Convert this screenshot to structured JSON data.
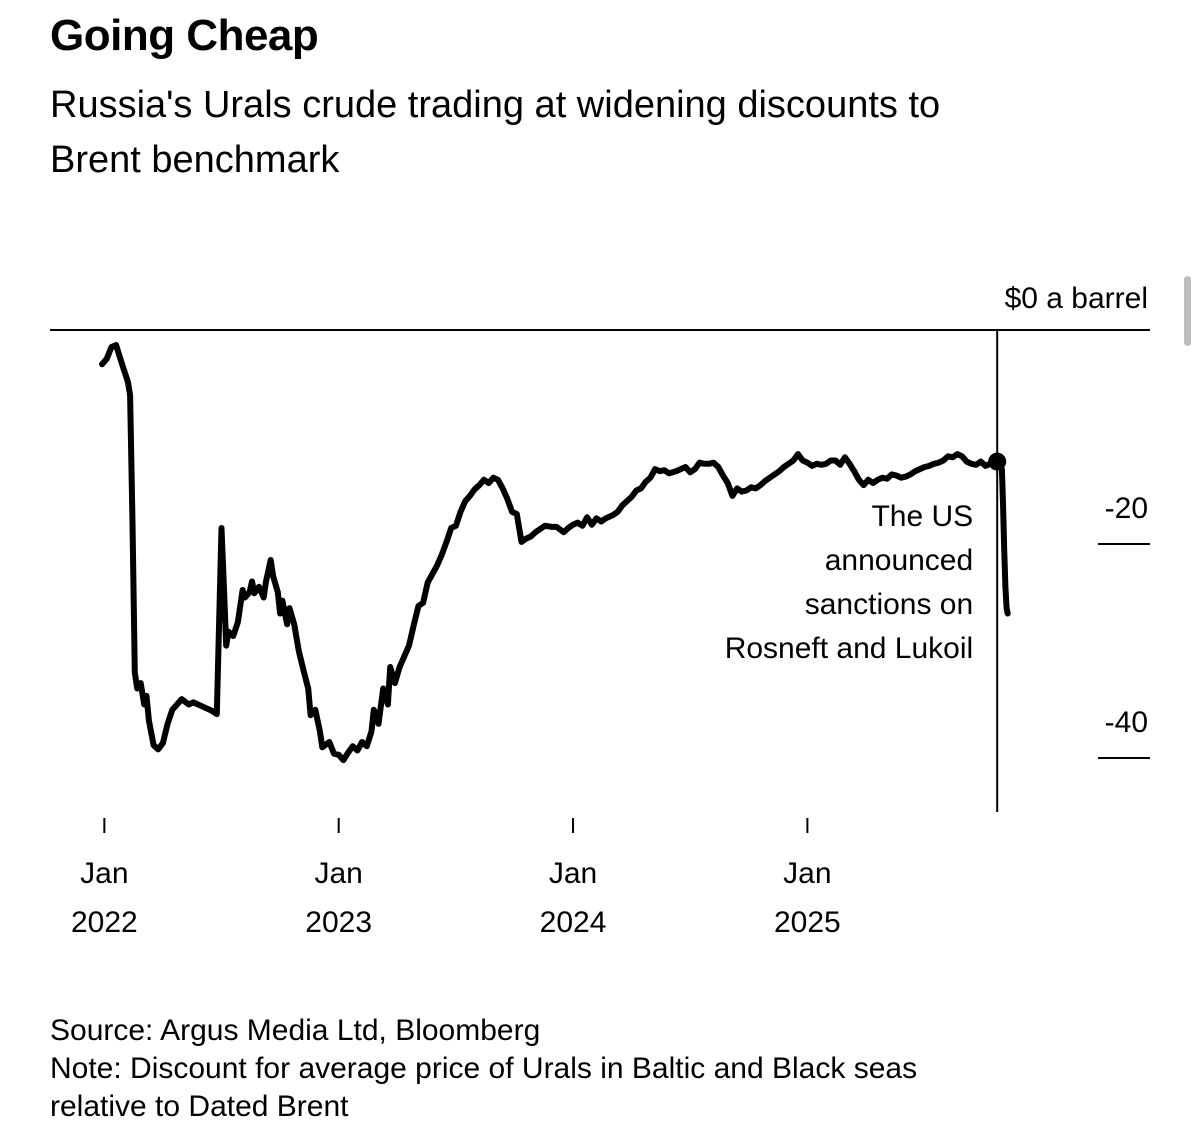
{
  "header": {
    "title": "Going Cheap",
    "subtitle_line1": "Russia's Urals crude trading at widening discounts to",
    "subtitle_line2": "Brent benchmark"
  },
  "footer": {
    "source": "Source: Argus Media Ltd, Bloomberg",
    "note_line1": "Note: Discount for average price of Urals in Baltic and Black seas",
    "note_line2": "relative to Dated Brent"
  },
  "chart_data": {
    "type": "line",
    "title": "Going Cheap",
    "subtitle": "Russia's Urals crude trading at widening discounts to Brent benchmark",
    "ylabel": "$ a barrel",
    "ylim": [
      -43.5,
      0
    ],
    "xlim": [
      2021.99,
      2025.95
    ],
    "y_ticks": [
      {
        "value": 0,
        "label": "$0 a barrel"
      },
      {
        "value": -20,
        "label": "-20"
      },
      {
        "value": -40,
        "label": "-40"
      }
    ],
    "x_ticks": [
      {
        "value": 2022.0,
        "month": "Jan",
        "year": "2022"
      },
      {
        "value": 2023.0,
        "month": "Jan",
        "year": "2023"
      },
      {
        "value": 2024.0,
        "month": "Jan",
        "year": "2024"
      },
      {
        "value": 2025.0,
        "month": "Jan",
        "year": "2025"
      }
    ],
    "annotation": {
      "x": 2025.81,
      "y": -12.3,
      "lines": [
        "The US",
        "announced",
        "sanctions on",
        "Rosneft and Lukoil"
      ]
    },
    "series": [
      {
        "name": "Urals discount to Dated Brent",
        "points": [
          [
            2021.99,
            -3.2
          ],
          [
            2022.01,
            -2.7
          ],
          [
            2022.03,
            -1.6
          ],
          [
            2022.05,
            -1.4
          ],
          [
            2022.06,
            -2.1
          ],
          [
            2022.08,
            -3.5
          ],
          [
            2022.1,
            -4.8
          ],
          [
            2022.11,
            -6.1
          ],
          [
            2022.12,
            -18.0
          ],
          [
            2022.13,
            -32.0
          ],
          [
            2022.14,
            -33.5
          ],
          [
            2022.155,
            -33.0
          ],
          [
            2022.17,
            -35.0
          ],
          [
            2022.18,
            -34.2
          ],
          [
            2022.19,
            -36.5
          ],
          [
            2022.21,
            -38.8
          ],
          [
            2022.23,
            -39.2
          ],
          [
            2022.25,
            -38.6
          ],
          [
            2022.27,
            -36.8
          ],
          [
            2022.29,
            -35.5
          ],
          [
            2022.31,
            -35.0
          ],
          [
            2022.33,
            -34.5
          ],
          [
            2022.36,
            -35.0
          ],
          [
            2022.38,
            -34.8
          ],
          [
            2022.4,
            -35.0
          ],
          [
            2022.43,
            -35.3
          ],
          [
            2022.46,
            -35.6
          ],
          [
            2022.48,
            -35.9
          ],
          [
            2022.5,
            -18.5
          ],
          [
            2022.51,
            -24.0
          ],
          [
            2022.52,
            -29.5
          ],
          [
            2022.53,
            -28.2
          ],
          [
            2022.55,
            -28.6
          ],
          [
            2022.57,
            -27.3
          ],
          [
            2022.59,
            -24.3
          ],
          [
            2022.6,
            -25.0
          ],
          [
            2022.62,
            -24.5
          ],
          [
            2022.63,
            -23.5
          ],
          [
            2022.64,
            -24.6
          ],
          [
            2022.66,
            -24.0
          ],
          [
            2022.68,
            -25.0
          ],
          [
            2022.69,
            -23.5
          ],
          [
            2022.71,
            -21.5
          ],
          [
            2022.72,
            -23.0
          ],
          [
            2022.74,
            -24.5
          ],
          [
            2022.75,
            -26.5
          ],
          [
            2022.76,
            -25.3
          ],
          [
            2022.78,
            -27.5
          ],
          [
            2022.79,
            -26.0
          ],
          [
            2022.81,
            -27.5
          ],
          [
            2022.83,
            -30.0
          ],
          [
            2022.85,
            -31.8
          ],
          [
            2022.87,
            -33.5
          ],
          [
            2022.88,
            -36.0
          ],
          [
            2022.9,
            -35.5
          ],
          [
            2022.92,
            -37.5
          ],
          [
            2022.93,
            -39.0
          ],
          [
            2022.96,
            -38.5
          ],
          [
            2022.98,
            -39.6
          ],
          [
            2023.0,
            -39.7
          ],
          [
            2023.02,
            -40.2
          ],
          [
            2023.04,
            -39.5
          ],
          [
            2023.06,
            -38.9
          ],
          [
            2023.08,
            -39.3
          ],
          [
            2023.1,
            -38.5
          ],
          [
            2023.12,
            -38.9
          ],
          [
            2023.14,
            -37.5
          ],
          [
            2023.15,
            -35.5
          ],
          [
            2023.17,
            -36.8
          ],
          [
            2023.19,
            -33.5
          ],
          [
            2023.21,
            -35.0
          ],
          [
            2023.22,
            -31.5
          ],
          [
            2023.24,
            -33.0
          ],
          [
            2023.26,
            -31.5
          ],
          [
            2023.28,
            -30.5
          ],
          [
            2023.3,
            -29.5
          ],
          [
            2023.32,
            -27.6
          ],
          [
            2023.34,
            -25.8
          ],
          [
            2023.36,
            -25.5
          ],
          [
            2023.38,
            -23.6
          ],
          [
            2023.4,
            -22.8
          ],
          [
            2023.42,
            -22.0
          ],
          [
            2023.44,
            -21.0
          ],
          [
            2023.46,
            -19.8
          ],
          [
            2023.48,
            -18.5
          ],
          [
            2023.5,
            -18.3
          ],
          [
            2023.52,
            -17.0
          ],
          [
            2023.54,
            -16.0
          ],
          [
            2023.56,
            -15.5
          ],
          [
            2023.58,
            -14.9
          ],
          [
            2023.6,
            -14.5
          ],
          [
            2023.62,
            -14.0
          ],
          [
            2023.64,
            -14.3
          ],
          [
            2023.66,
            -13.8
          ],
          [
            2023.68,
            -14.0
          ],
          [
            2023.7,
            -14.8
          ],
          [
            2023.72,
            -15.8
          ],
          [
            2023.74,
            -17.0
          ],
          [
            2023.76,
            -17.2
          ],
          [
            2023.78,
            -19.8
          ],
          [
            2023.8,
            -19.5
          ],
          [
            2023.82,
            -19.3
          ],
          [
            2023.84,
            -18.9
          ],
          [
            2023.86,
            -18.6
          ],
          [
            2023.88,
            -18.3
          ],
          [
            2023.91,
            -18.4
          ],
          [
            2023.93,
            -18.4
          ],
          [
            2023.96,
            -18.9
          ],
          [
            2023.98,
            -18.5
          ],
          [
            2024.0,
            -18.2
          ],
          [
            2024.02,
            -18.0
          ],
          [
            2024.04,
            -18.3
          ],
          [
            2024.06,
            -17.5
          ],
          [
            2024.08,
            -18.2
          ],
          [
            2024.1,
            -17.6
          ],
          [
            2024.12,
            -17.9
          ],
          [
            2024.14,
            -17.6
          ],
          [
            2024.17,
            -17.3
          ],
          [
            2024.19,
            -17.0
          ],
          [
            2024.21,
            -16.4
          ],
          [
            2024.23,
            -16.0
          ],
          [
            2024.25,
            -15.6
          ],
          [
            2024.27,
            -15.0
          ],
          [
            2024.29,
            -14.8
          ],
          [
            2024.31,
            -14.2
          ],
          [
            2024.33,
            -13.8
          ],
          [
            2024.35,
            -13.0
          ],
          [
            2024.37,
            -13.2
          ],
          [
            2024.39,
            -13.1
          ],
          [
            2024.41,
            -13.4
          ],
          [
            2024.44,
            -13.2
          ],
          [
            2024.46,
            -13.0
          ],
          [
            2024.48,
            -12.8
          ],
          [
            2024.5,
            -13.3
          ],
          [
            2024.52,
            -13.0
          ],
          [
            2024.54,
            -12.4
          ],
          [
            2024.56,
            -12.5
          ],
          [
            2024.58,
            -12.5
          ],
          [
            2024.6,
            -12.4
          ],
          [
            2024.62,
            -12.8
          ],
          [
            2024.64,
            -13.6
          ],
          [
            2024.66,
            -14.3
          ],
          [
            2024.68,
            -15.5
          ],
          [
            2024.7,
            -14.8
          ],
          [
            2024.72,
            -15.1
          ],
          [
            2024.74,
            -15.0
          ],
          [
            2024.76,
            -14.7
          ],
          [
            2024.78,
            -14.8
          ],
          [
            2024.8,
            -14.5
          ],
          [
            2024.82,
            -14.1
          ],
          [
            2024.84,
            -13.8
          ],
          [
            2024.86,
            -13.5
          ],
          [
            2024.88,
            -13.2
          ],
          [
            2024.9,
            -12.8
          ],
          [
            2024.92,
            -12.5
          ],
          [
            2024.94,
            -12.2
          ],
          [
            2024.96,
            -11.6
          ],
          [
            2024.98,
            -12.2
          ],
          [
            2025.0,
            -12.4
          ],
          [
            2025.02,
            -12.7
          ],
          [
            2025.04,
            -12.5
          ],
          [
            2025.06,
            -12.6
          ],
          [
            2025.08,
            -12.5
          ],
          [
            2025.1,
            -12.2
          ],
          [
            2025.12,
            -12.2
          ],
          [
            2025.14,
            -12.6
          ],
          [
            2025.16,
            -11.9
          ],
          [
            2025.18,
            -12.5
          ],
          [
            2025.2,
            -13.2
          ],
          [
            2025.22,
            -14.0
          ],
          [
            2025.24,
            -14.5
          ],
          [
            2025.26,
            -14.0
          ],
          [
            2025.28,
            -14.3
          ],
          [
            2025.3,
            -14.0
          ],
          [
            2025.32,
            -13.8
          ],
          [
            2025.34,
            -13.9
          ],
          [
            2025.36,
            -13.5
          ],
          [
            2025.38,
            -13.6
          ],
          [
            2025.4,
            -13.8
          ],
          [
            2025.42,
            -13.7
          ],
          [
            2025.44,
            -13.5
          ],
          [
            2025.46,
            -13.2
          ],
          [
            2025.48,
            -13.0
          ],
          [
            2025.5,
            -12.8
          ],
          [
            2025.52,
            -12.7
          ],
          [
            2025.54,
            -12.5
          ],
          [
            2025.56,
            -12.4
          ],
          [
            2025.58,
            -12.2
          ],
          [
            2025.6,
            -11.8
          ],
          [
            2025.62,
            -11.9
          ],
          [
            2025.64,
            -11.6
          ],
          [
            2025.66,
            -11.8
          ],
          [
            2025.68,
            -12.3
          ],
          [
            2025.7,
            -12.5
          ],
          [
            2025.72,
            -12.6
          ],
          [
            2025.74,
            -12.3
          ],
          [
            2025.76,
            -12.7
          ],
          [
            2025.78,
            -12.5
          ],
          [
            2025.8,
            -12.2
          ],
          [
            2025.81,
            -12.3
          ],
          [
            2025.82,
            -12.8
          ],
          [
            2025.83,
            -13.0
          ],
          [
            2025.835,
            -16.5
          ],
          [
            2025.84,
            -20.5
          ],
          [
            2025.845,
            -24.0
          ],
          [
            2025.85,
            -26.0
          ],
          [
            2025.855,
            -26.5
          ]
        ]
      }
    ]
  }
}
